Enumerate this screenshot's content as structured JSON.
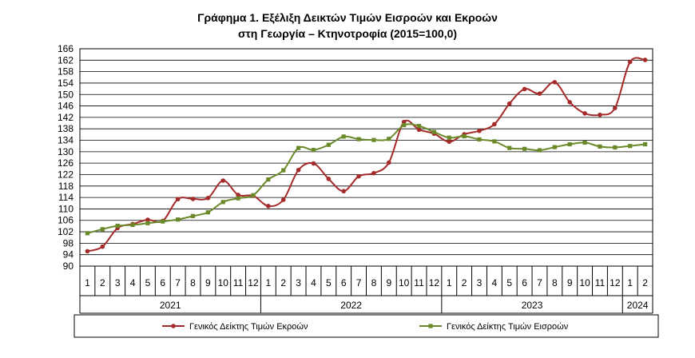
{
  "chart_data": {
    "type": "line",
    "title_line1": "Γράφημα 1. Εξέλιξη Δεικτών Τιμών Εισροών και Εκροών",
    "title_line2": "στη Γεωργία – Κτηνοτροφία (2015=100,0)",
    "x_months": [
      "1",
      "2",
      "3",
      "4",
      "5",
      "6",
      "7",
      "8",
      "9",
      "10",
      "11",
      "12",
      "1",
      "2",
      "3",
      "4",
      "5",
      "6",
      "7",
      "8",
      "9",
      "10",
      "11",
      "12",
      "1",
      "2",
      "3",
      "4",
      "5",
      "6",
      "7",
      "8",
      "9",
      "10",
      "11",
      "12",
      "1",
      "2"
    ],
    "years": [
      {
        "label": "2021",
        "months": 12
      },
      {
        "label": "2022",
        "months": 12
      },
      {
        "label": "2023",
        "months": 12
      },
      {
        "label": "2024",
        "months": 2
      }
    ],
    "ylim": [
      90,
      166
    ],
    "ytick_step": 4,
    "grid": true,
    "legend_position": "bottom",
    "series": [
      {
        "name": "Γενικός Δείκτης Τιμών Εκροών",
        "color": "#a52a2a",
        "marker": "circle",
        "values": [
          95.2,
          96.8,
          103.3,
          104.7,
          106.2,
          105.8,
          113.4,
          113.5,
          113.8,
          119.9,
          114.9,
          114.6,
          111.0,
          113.2,
          123.6,
          125.9,
          120.5,
          116.2,
          121.4,
          122.5,
          126.2,
          140.4,
          137.7,
          136.3,
          133.5,
          136.1,
          137.3,
          139.6,
          146.8,
          151.9,
          150.3,
          154.3,
          147.3,
          143.4,
          142.9,
          145.3,
          161.4,
          162.1
        ]
      },
      {
        "name": "Γενικός Δείκτης Τιμών Εισροών",
        "color": "#6a8a2a",
        "marker": "square",
        "values": [
          101.5,
          102.9,
          104.1,
          104.4,
          105.0,
          105.6,
          106.3,
          107.5,
          108.8,
          112.4,
          113.7,
          114.8,
          120.3,
          123.5,
          131.3,
          130.6,
          132.4,
          135.3,
          134.4,
          134.1,
          134.5,
          139.3,
          139.0,
          136.9,
          134.9,
          135.4,
          134.3,
          133.6,
          131.3,
          131.0,
          130.5,
          131.6,
          132.6,
          133.2,
          131.8,
          131.5,
          132.0,
          132.6
        ]
      }
    ]
  }
}
